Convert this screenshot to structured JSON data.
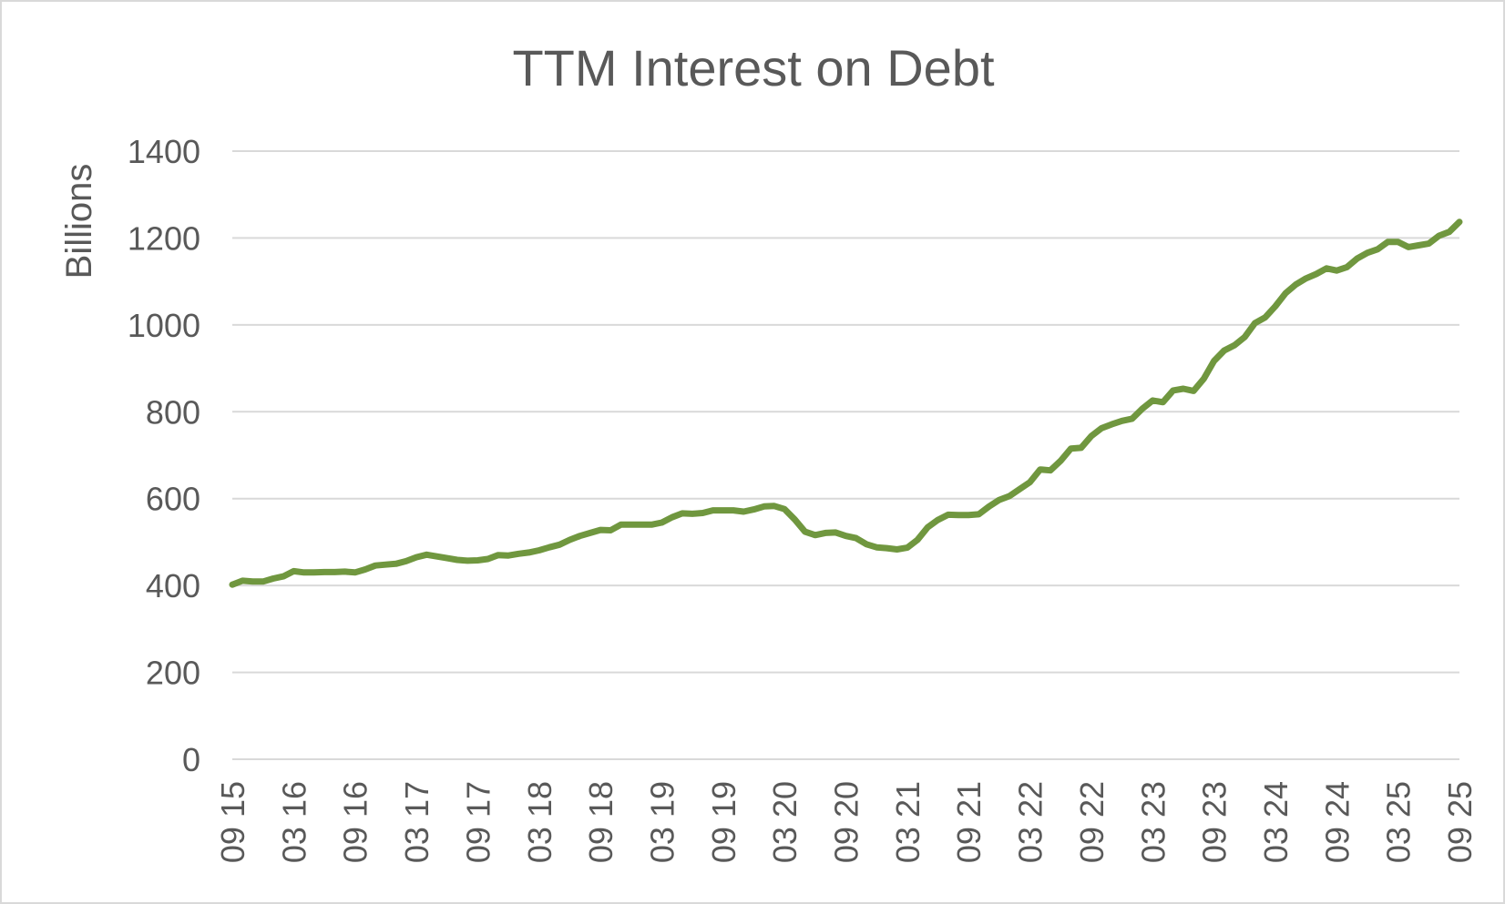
{
  "chart_data": {
    "type": "line",
    "title": "TTM Interest on Debt",
    "ylabel": "Billions",
    "xlabel": "",
    "ylim": [
      0,
      1400
    ],
    "yticks": [
      0,
      200,
      400,
      600,
      800,
      1000,
      1200,
      1400
    ],
    "grid": true,
    "legend": "none",
    "line_color": "#70973f",
    "x_tick_labels": [
      "09 15",
      "03 16",
      "09 16",
      "03 17",
      "09 17",
      "03 18",
      "09 18",
      "03 19",
      "09 19",
      "03 20",
      "09 20",
      "03 21",
      "09 21",
      "03 22",
      "09 22",
      "03 23",
      "09 23",
      "03 24",
      "09 24",
      "03 25",
      "09 25"
    ],
    "series": [
      {
        "values": [
          402,
          411,
          409,
          409,
          416,
          421,
          433,
          430,
          430,
          431,
          431,
          432,
          430,
          437,
          446,
          448,
          450,
          456,
          465,
          471,
          467,
          463,
          459,
          457,
          458,
          461,
          470,
          469,
          473,
          476,
          481,
          488,
          494,
          505,
          514,
          521,
          528,
          527,
          540,
          540,
          540,
          540,
          545,
          557,
          566,
          565,
          567,
          573,
          573,
          573,
          570,
          575,
          582,
          583,
          576,
          552,
          524,
          516,
          521,
          522,
          514,
          509,
          495,
          488,
          486,
          483,
          487,
          505,
          534,
          551,
          563,
          562,
          562,
          564,
          582,
          597,
          606,
          622,
          638,
          667,
          665,
          687,
          715,
          717,
          744,
          762,
          771,
          779,
          784,
          807,
          826,
          822,
          849,
          853,
          848,
          876,
          917,
          941,
          953,
          972,
          1004,
          1017,
          1043,
          1073,
          1093,
          1107,
          1117,
          1130,
          1125,
          1133,
          1153,
          1166,
          1174,
          1191,
          1191,
          1179,
          1183,
          1187,
          1205,
          1214,
          1237
        ]
      }
    ]
  }
}
